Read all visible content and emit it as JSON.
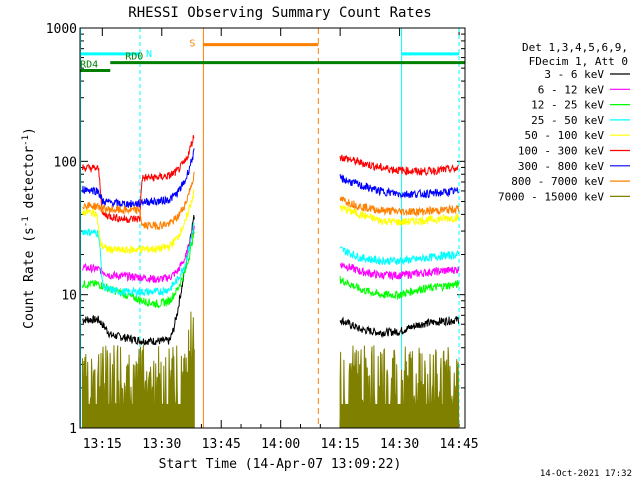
{
  "chart_data": {
    "type": "line",
    "title": "RHESSI Observing Summary Count Rates",
    "xlabel": "Start Time (14-Apr-07 13:09:22)",
    "ylabel_main": "Count Rate (s",
    "ylabel_sup1": "-1",
    "ylabel_mid": " detector",
    "ylabel_sup2": "-1",
    "ylabel_end": ")",
    "x_unit": "minutes after 13:00 UT",
    "xlim": [
      9.37,
      47.0
    ],
    "ylim": [
      1,
      1000
    ],
    "y_scale": "log",
    "x_ticks": [
      {
        "value": 15,
        "label": "13:15"
      },
      {
        "value": 30,
        "label": "13:30"
      },
      {
        "value": 45,
        "label": "13:45"
      },
      {
        "value": 60,
        "label": "14:00"
      },
      {
        "value": 75,
        "label": "14:15"
      },
      {
        "value": 90,
        "label": "14:30"
      },
      {
        "value": 105,
        "label": "14:45"
      }
    ],
    "y_ticks": [
      {
        "value": 1,
        "label": "1"
      },
      {
        "value": 10,
        "label": "10"
      },
      {
        "value": 100,
        "label": "100"
      },
      {
        "value": 1000,
        "label": "1000"
      }
    ],
    "legend_header": [
      "Det 1,3,4,5,6,9,",
      "FDecim 1, Att 0"
    ],
    "legend_position": "right",
    "footer": "14-Oct-2021 17:32",
    "data_gap": [
      33.0,
      70.0
    ],
    "series": [
      {
        "name": "3 - 6 keV",
        "color": "#000000",
        "points": [
          [
            10,
            6.5
          ],
          [
            14,
            6.5
          ],
          [
            17,
            5
          ],
          [
            25,
            4.5
          ],
          [
            29,
            4.5
          ],
          [
            32,
            4.5
          ],
          [
            33,
            5.5
          ],
          [
            34,
            7.5
          ],
          [
            35,
            11
          ],
          [
            36,
            16
          ],
          [
            37,
            25
          ],
          [
            38.3,
            40
          ]
        ],
        "points2": [
          [
            75,
            6.5
          ],
          [
            80,
            5.5
          ],
          [
            85,
            5.2
          ],
          [
            90,
            5.3
          ],
          [
            95,
            6.0
          ],
          [
            100,
            6.3
          ],
          [
            105,
            6.5
          ]
        ]
      },
      {
        "name": "6 - 12 keV",
        "color": "#ff00ff",
        "points": [
          [
            10,
            16
          ],
          [
            14,
            15.5
          ],
          [
            17,
            14
          ],
          [
            25,
            13.5
          ],
          [
            29,
            13
          ],
          [
            32,
            13.5
          ],
          [
            34,
            15
          ],
          [
            36,
            19
          ],
          [
            37,
            24
          ],
          [
            38.3,
            33
          ]
        ],
        "points2": [
          [
            75,
            17
          ],
          [
            80,
            15
          ],
          [
            85,
            14
          ],
          [
            90,
            14
          ],
          [
            95,
            14.5
          ],
          [
            100,
            15
          ],
          [
            105,
            15.5
          ]
        ]
      },
      {
        "name": "12 - 25 keV",
        "color": "#00ff00",
        "points": [
          [
            10,
            12
          ],
          [
            14,
            12
          ],
          [
            17,
            11
          ],
          [
            25,
            9
          ],
          [
            29,
            8.5
          ],
          [
            32,
            9
          ],
          [
            34,
            11
          ],
          [
            36,
            15
          ],
          [
            37,
            20
          ],
          [
            38.3,
            30
          ]
        ],
        "points2": [
          [
            75,
            13
          ],
          [
            80,
            11
          ],
          [
            85,
            10
          ],
          [
            90,
            10
          ],
          [
            95,
            11
          ],
          [
            100,
            11.5
          ],
          [
            105,
            12
          ]
        ]
      },
      {
        "name": "25 - 50 keV",
        "color": "#00ffff",
        "points": [
          [
            10,
            30
          ],
          [
            14,
            29
          ],
          [
            15,
            12
          ],
          [
            16,
            11
          ],
          [
            20,
            10.5
          ],
          [
            25,
            10.5
          ],
          [
            29,
            10.5
          ],
          [
            32,
            11
          ],
          [
            34,
            13
          ],
          [
            36,
            17
          ],
          [
            37,
            23
          ],
          [
            38.3,
            35
          ]
        ],
        "points2": [
          [
            75,
            22
          ],
          [
            80,
            19
          ],
          [
            85,
            18
          ],
          [
            90,
            18
          ],
          [
            95,
            18.5
          ],
          [
            100,
            19.5
          ],
          [
            105,
            20
          ]
        ]
      },
      {
        "name": "50 - 100 keV",
        "color": "#ffff00",
        "points": [
          [
            10,
            42
          ],
          [
            13.5,
            41
          ],
          [
            14.5,
            24
          ],
          [
            16,
            22
          ],
          [
            20,
            21.5
          ],
          [
            25,
            22
          ],
          [
            29,
            22
          ],
          [
            32,
            23
          ],
          [
            34,
            27
          ],
          [
            36,
            35
          ],
          [
            37,
            45
          ],
          [
            38.3,
            60
          ]
        ],
        "points2": [
          [
            75,
            45
          ],
          [
            80,
            40
          ],
          [
            85,
            36
          ],
          [
            90,
            35
          ],
          [
            95,
            36
          ],
          [
            100,
            37
          ],
          [
            105,
            38
          ]
        ]
      },
      {
        "name": "100 - 300 keV",
        "color": "#ff0000",
        "points": [
          [
            10,
            90
          ],
          [
            14,
            88
          ],
          [
            15,
            40
          ],
          [
            20,
            37
          ],
          [
            24.5,
            37
          ],
          [
            25,
            75
          ],
          [
            29,
            76
          ],
          [
            32,
            78
          ],
          [
            34,
            85
          ],
          [
            36,
            100
          ],
          [
            37,
            120
          ],
          [
            38.3,
            160
          ]
        ],
        "points2": [
          [
            75,
            108
          ],
          [
            80,
            98
          ],
          [
            85,
            90
          ],
          [
            90,
            86
          ],
          [
            95,
            84
          ],
          [
            100,
            86
          ],
          [
            105,
            88
          ]
        ]
      },
      {
        "name": "300 - 800 keV",
        "color": "#0000ff",
        "points": [
          [
            10,
            62
          ],
          [
            14,
            60
          ],
          [
            15,
            50
          ],
          [
            20,
            48
          ],
          [
            24.5,
            48
          ],
          [
            25,
            50
          ],
          [
            29,
            50
          ],
          [
            32,
            52
          ],
          [
            34,
            58
          ],
          [
            36,
            72
          ],
          [
            37,
            90
          ],
          [
            38.3,
            120
          ]
        ],
        "points2": [
          [
            75,
            75
          ],
          [
            80,
            66
          ],
          [
            85,
            60
          ],
          [
            90,
            57
          ],
          [
            95,
            57
          ],
          [
            100,
            58
          ],
          [
            105,
            60
          ]
        ]
      },
      {
        "name": "800 - 7000 keV",
        "color": "#ff8000",
        "points": [
          [
            10,
            47
          ],
          [
            14,
            46
          ],
          [
            15,
            44
          ],
          [
            20,
            43
          ],
          [
            24.5,
            43
          ],
          [
            25,
            33
          ],
          [
            29,
            33
          ],
          [
            32,
            34
          ],
          [
            34,
            38
          ],
          [
            36,
            48
          ],
          [
            37,
            60
          ],
          [
            38.3,
            80
          ]
        ],
        "points2": [
          [
            75,
            52
          ],
          [
            80,
            46
          ],
          [
            85,
            43
          ],
          [
            90,
            42
          ],
          [
            95,
            42
          ],
          [
            100,
            43
          ],
          [
            105,
            44
          ]
        ]
      },
      {
        "name": "7000 - 15000 keV",
        "color": "#808000",
        "points": [
          [
            10,
            1.5
          ],
          [
            36,
            1.5
          ],
          [
            37,
            2.5
          ],
          [
            38.3,
            4
          ]
        ],
        "points2": [
          [
            75,
            1.5
          ],
          [
            105,
            1.5
          ]
        ]
      }
    ],
    "flags": [
      {
        "label": "N",
        "color": "#00ffff",
        "start": 9.4,
        "end": 24.5,
        "level": 640,
        "start2": 90.5,
        "end2": 105,
        "level2": 640
      },
      {
        "label": "RD0",
        "color": "#008000",
        "start": 17,
        "end": 24.5,
        "level": 550
      },
      {
        "label": "RD4",
        "color": "#008000",
        "start": 9.4,
        "end": 17,
        "level": 480
      },
      {
        "label": "S",
        "color": "#ff8000",
        "start": 40.5,
        "end": 69.5,
        "level": 750
      }
    ]
  }
}
